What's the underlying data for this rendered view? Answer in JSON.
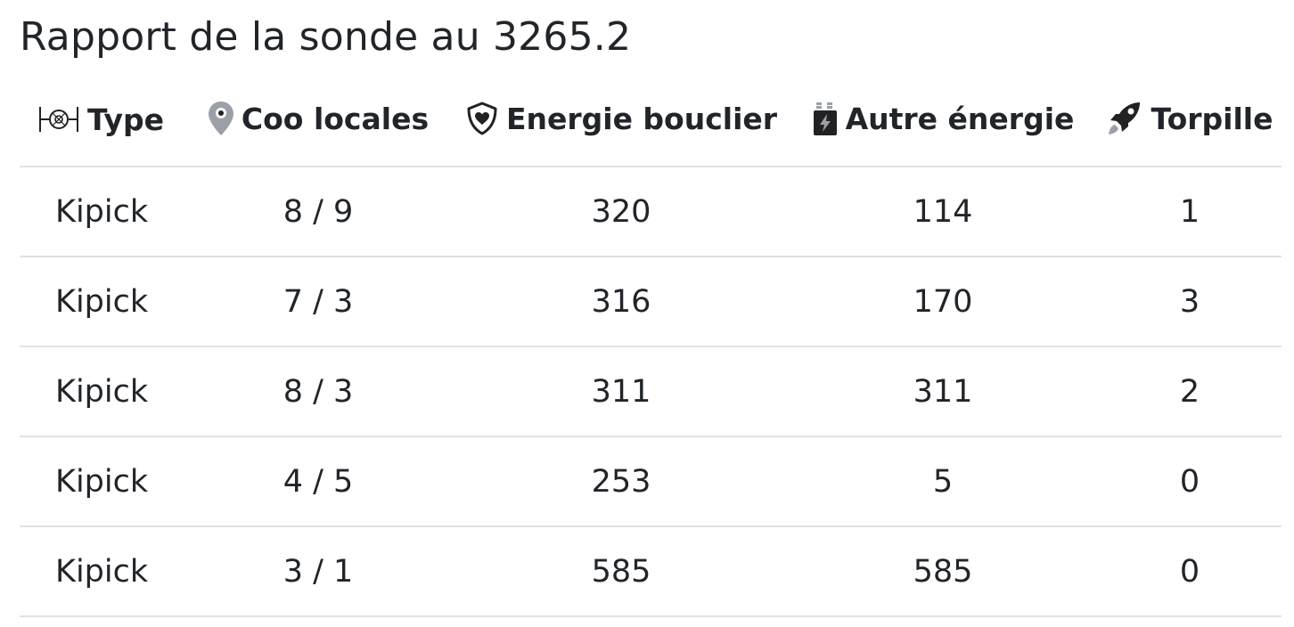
{
  "title": "Rapport de la sonde au 3265.2",
  "columns": {
    "type": {
      "label": "Type",
      "icon": "tie-fighter-icon"
    },
    "coords": {
      "label": "Coo locales",
      "icon": "map-pin-icon"
    },
    "shield": {
      "label": "Energie bouclier",
      "icon": "shield-heart-icon"
    },
    "energy": {
      "label": "Autre énergie",
      "icon": "battery-bolt-icon"
    },
    "torpedo": {
      "label": "Torpille",
      "icon": "rocket-icon"
    }
  },
  "colors": {
    "text": "#212529",
    "border": "#dee2e6",
    "icon_gray": "#9aa0a6"
  },
  "rows": [
    {
      "type": "Kipick",
      "coords": "8 / 9",
      "shield": "320",
      "energy": "114",
      "torpedo": "1"
    },
    {
      "type": "Kipick",
      "coords": "7 / 3",
      "shield": "316",
      "energy": "170",
      "torpedo": "3"
    },
    {
      "type": "Kipick",
      "coords": "8 / 3",
      "shield": "311",
      "energy": "311",
      "torpedo": "2"
    },
    {
      "type": "Kipick",
      "coords": "4 / 5",
      "shield": "253",
      "energy": "5",
      "torpedo": "0"
    },
    {
      "type": "Kipick",
      "coords": "3 / 1",
      "shield": "585",
      "energy": "585",
      "torpedo": "0"
    }
  ]
}
